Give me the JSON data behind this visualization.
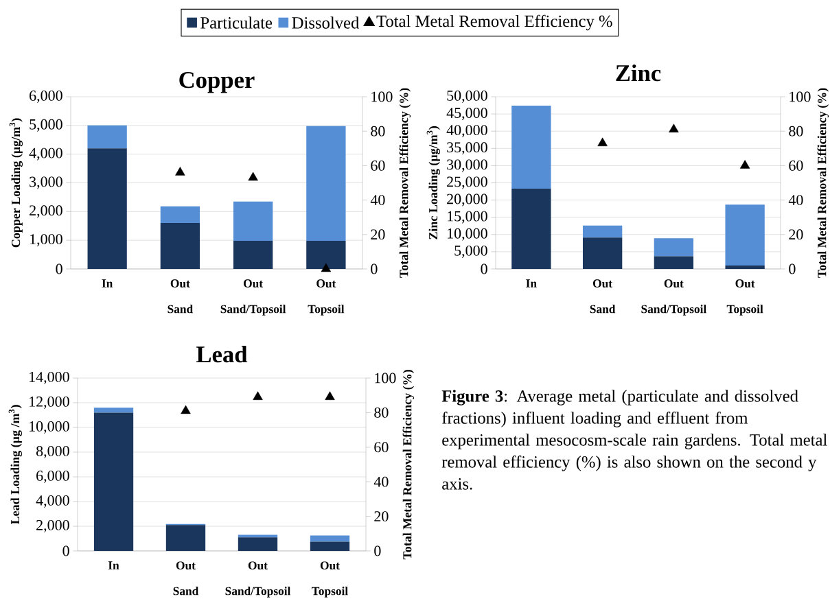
{
  "chart_data": [
    {
      "type": "bar",
      "stacked": true,
      "title": "Copper",
      "ylabel": "Copper Loading (µg/m$^{3}$)",
      "y2label": "Total Metal Removal Efficiency (%)",
      "categories": [
        "In",
        "Out Sand",
        "Out Sand/Topsoil",
        "Out Topsoil"
      ],
      "ylim": [
        0,
        6000
      ],
      "yticks": [
        0,
        {
          "value": 1000,
          "label": "1,000"
        },
        {
          "value": 2000,
          "label": "2,000"
        },
        {
          "value": 3000,
          "label": "3,000"
        },
        {
          "value": 4000,
          "label": "4,000"
        },
        {
          "value": 5000,
          "label": "5,000"
        },
        {
          "value": 6000,
          "label": "6,000"
        }
      ],
      "y2lim": [
        0,
        100
      ],
      "y2ticks": [
        0,
        20,
        40,
        60,
        80,
        100
      ],
      "grid": "y",
      "legend": "top",
      "series": [
        {
          "name": "Particulate",
          "color": "#1a365d",
          "values": [
            4200,
            1600,
            980,
            980
          ]
        },
        {
          "name": "Dissolved",
          "color": "#558ed5",
          "values": [
            800,
            580,
            1370,
            4000
          ]
        },
        {
          "name": "Total Metal Removal Efficiency %",
          "type": "scatter",
          "axis": "y2",
          "marker": "triangle",
          "color": "#000000",
          "values": [
            null,
            56,
            53,
            0
          ]
        }
      ]
    },
    {
      "type": "bar",
      "stacked": true,
      "title": "Zinc",
      "ylabel": "Zinc Loading (µg/m$^{3}$)",
      "y2label": "Total Metal Removal Efficiency (%)",
      "categories": [
        "In",
        "Out Sand",
        "Out Sand/Topsoil",
        "Out Topsoil"
      ],
      "ylim": [
        0,
        50000
      ],
      "yticks": [
        0,
        {
          "value": 5000,
          "label": "5,000"
        },
        {
          "value": 10000,
          "label": "10,000"
        },
        {
          "value": 15000,
          "label": "15,000"
        },
        {
          "value": 20000,
          "label": "20,000"
        },
        {
          "value": 25000,
          "label": "25,000"
        },
        {
          "value": 30000,
          "label": "30,000"
        },
        {
          "value": 35000,
          "label": "35,000"
        },
        {
          "value": 40000,
          "label": "40,000"
        },
        {
          "value": 45000,
          "label": "45,000"
        },
        {
          "value": 50000,
          "label": "50,000"
        }
      ],
      "y2lim": [
        0,
        100
      ],
      "y2ticks": [
        0,
        20,
        40,
        60,
        80,
        100
      ],
      "grid": "y",
      "series": [
        {
          "color": "#1a365d",
          "values": [
            23300,
            9100,
            3700,
            1000
          ]
        },
        {
          "color": "#558ed5",
          "values": [
            24100,
            3500,
            5200,
            17700
          ]
        },
        {
          "type": "scatter",
          "axis": "y2",
          "marker": "triangle",
          "color": "#000000",
          "values": [
            null,
            73,
            81,
            60
          ]
        }
      ]
    },
    {
      "type": "bar",
      "stacked": true,
      "title": "Lead",
      "ylabel": "Lead Loading (µg /m$^{3}$)",
      "y2label": "Total Metal Removal Efficiency (%)",
      "categories": [
        "In",
        "Out Sand",
        "Out Sand/Topsoil",
        "Out Topsoil"
      ],
      "ylim": [
        0,
        14000
      ],
      "yticks": [
        0,
        {
          "value": 2000,
          "label": "2,000"
        },
        {
          "value": 4000,
          "label": "4,000"
        },
        {
          "value": 6000,
          "label": "6,000"
        },
        {
          "value": 8000,
          "label": "8,000"
        },
        {
          "value": 10000,
          "label": "10,000"
        },
        {
          "value": 12000,
          "label": "12,000"
        },
        {
          "value": 14000,
          "label": "14,000"
        }
      ],
      "y2lim": [
        0,
        100
      ],
      "y2ticks": [
        0,
        20,
        40,
        60,
        80,
        100
      ],
      "grid": "y",
      "annotations": [
        "**Figure 3**: Average metal (particulate and dissolved fractions) influent loading and effluent from experimental mesocosm-scale rain gardens. Total metal removal efficiency (%) is also shown on the second y axis."
      ],
      "series": [
        {
          "color": "#1a365d",
          "values": [
            11200,
            2100,
            1100,
            750
          ]
        },
        {
          "color": "#558ed5",
          "values": [
            400,
            80,
            200,
            500
          ]
        },
        {
          "type": "scatter",
          "axis": "y2",
          "marker": "triangle",
          "color": "#000000",
          "values": [
            null,
            81,
            89,
            89
          ]
        }
      ]
    }
  ]
}
